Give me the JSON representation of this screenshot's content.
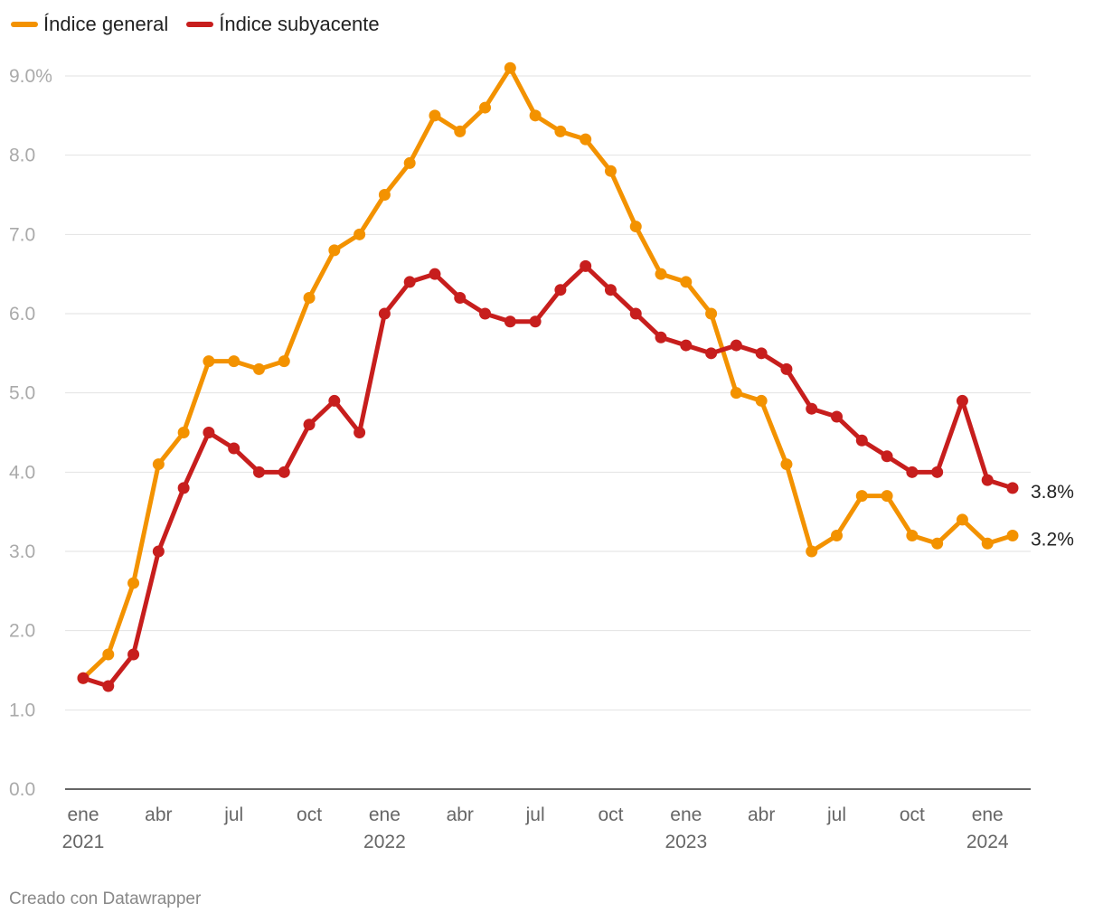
{
  "legend": [
    {
      "name": "Índice general",
      "color": "#f39200"
    },
    {
      "name": "Índice subyacente",
      "color": "#c71e1d"
    }
  ],
  "footer": "Creado con Datawrapper",
  "chart_data": {
    "type": "line",
    "y_ticks": [
      "0.0",
      "1.0",
      "2.0",
      "3.0",
      "4.0",
      "5.0",
      "6.0",
      "7.0",
      "8.0",
      "9.0%"
    ],
    "ylim": [
      0,
      9
    ],
    "grid": true,
    "x_ticks": [
      {
        "index": 0,
        "month": "ene",
        "year": "2021"
      },
      {
        "index": 3,
        "month": "abr",
        "year": ""
      },
      {
        "index": 6,
        "month": "jul",
        "year": ""
      },
      {
        "index": 9,
        "month": "oct",
        "year": ""
      },
      {
        "index": 12,
        "month": "ene",
        "year": "2022"
      },
      {
        "index": 15,
        "month": "abr",
        "year": ""
      },
      {
        "index": 18,
        "month": "jul",
        "year": ""
      },
      {
        "index": 21,
        "month": "oct",
        "year": ""
      },
      {
        "index": 24,
        "month": "ene",
        "year": "2023"
      },
      {
        "index": 27,
        "month": "abr",
        "year": ""
      },
      {
        "index": 30,
        "month": "jul",
        "year": ""
      },
      {
        "index": 33,
        "month": "oct",
        "year": ""
      },
      {
        "index": 36,
        "month": "ene",
        "year": "2024"
      }
    ],
    "series": [
      {
        "name": "Índice general",
        "color": "#f39200",
        "end_label": "3.2%",
        "values": [
          1.4,
          1.7,
          2.6,
          4.1,
          4.5,
          5.4,
          5.4,
          5.3,
          5.4,
          6.2,
          6.8,
          7.0,
          7.5,
          7.9,
          8.5,
          8.3,
          8.6,
          9.1,
          8.5,
          8.3,
          8.2,
          7.8,
          7.1,
          6.5,
          6.4,
          6.0,
          5.0,
          4.9,
          4.1,
          3.0,
          3.2,
          3.7,
          3.7,
          3.2,
          3.1,
          3.4,
          3.1,
          3.2
        ]
      },
      {
        "name": "Índice subyacente",
        "color": "#c71e1d",
        "end_label": "3.8%",
        "values": [
          1.4,
          1.3,
          1.7,
          3.0,
          3.8,
          4.5,
          4.3,
          4.0,
          4.0,
          4.6,
          4.9,
          4.5,
          6.0,
          6.4,
          6.5,
          6.2,
          6.0,
          5.9,
          5.9,
          6.3,
          6.6,
          6.3,
          6.0,
          5.7,
          5.6,
          5.5,
          5.6,
          5.5,
          5.3,
          4.8,
          4.7,
          4.4,
          4.2,
          4.0,
          4.0,
          4.9,
          3.9,
          3.8
        ]
      }
    ]
  }
}
